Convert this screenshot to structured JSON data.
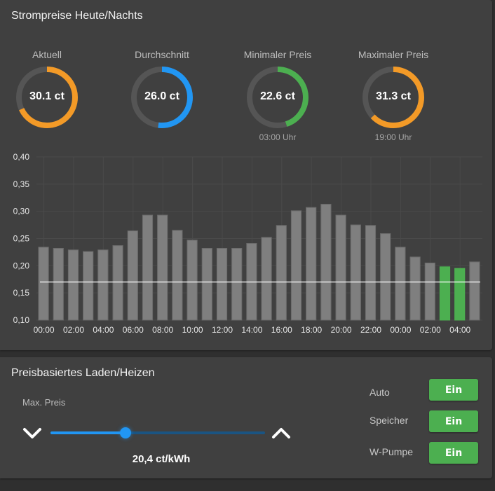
{
  "prices_card": {
    "title": "Strompreise Heute/Nachts",
    "gauges": [
      {
        "label": "Aktuell",
        "value": "30.1 ct",
        "fraction": 0.68,
        "color": "#f39a27",
        "sub": ""
      },
      {
        "label": "Durchschnitt",
        "value": "26.0 ct",
        "fraction": 0.52,
        "color": "#2196f3",
        "sub": ""
      },
      {
        "label": "Minimaler Preis",
        "value": "22.6 ct",
        "fraction": 0.45,
        "color": "#4caf50",
        "sub": "03:00 Uhr"
      },
      {
        "label": "Maximaler Preis",
        "value": "31.3 ct",
        "fraction": 0.63,
        "color": "#f39a27",
        "sub": "19:00 Uhr"
      }
    ]
  },
  "chart_data": {
    "type": "bar",
    "title": "",
    "xlabel": "",
    "ylabel": "",
    "ylim": [
      0.1,
      0.4
    ],
    "yticks": [
      "0,10",
      "0,15",
      "0,20",
      "0,25",
      "0,30",
      "0,35",
      "0,40"
    ],
    "ytick_values": [
      0.1,
      0.15,
      0.2,
      0.25,
      0.3,
      0.35,
      0.4
    ],
    "grid": true,
    "categories": [
      "00:00",
      "01:00",
      "02:00",
      "03:00",
      "04:00",
      "05:00",
      "06:00",
      "07:00",
      "08:00",
      "09:00",
      "10:00",
      "11:00",
      "12:00",
      "13:00",
      "14:00",
      "15:00",
      "16:00",
      "17:00",
      "18:00",
      "19:00",
      "20:00",
      "21:00",
      "22:00",
      "23:00",
      "00:00",
      "01:00",
      "02:00",
      "03:00",
      "04:00",
      "05:00"
    ],
    "xtick_labels": [
      "00:00",
      "02:00",
      "04:00",
      "06:00",
      "08:00",
      "10:00",
      "12:00",
      "14:00",
      "16:00",
      "18:00",
      "20:00",
      "22:00",
      "00:00",
      "02:00",
      "04:00"
    ],
    "values": [
      0.234,
      0.232,
      0.229,
      0.226,
      0.229,
      0.237,
      0.264,
      0.293,
      0.293,
      0.265,
      0.247,
      0.232,
      0.232,
      0.232,
      0.241,
      0.252,
      0.274,
      0.301,
      0.307,
      0.313,
      0.293,
      0.275,
      0.274,
      0.259,
      0.234,
      0.216,
      0.205,
      0.198,
      0.195,
      0.207
    ],
    "highlighted": [
      false,
      false,
      false,
      false,
      false,
      false,
      false,
      false,
      false,
      false,
      false,
      false,
      false,
      false,
      false,
      false,
      false,
      false,
      false,
      false,
      false,
      false,
      false,
      false,
      false,
      false,
      false,
      true,
      true,
      false
    ],
    "bar_color": "#7f7f7f",
    "highlight_color": "#4caf50",
    "threshold_line": 0.17,
    "threshold_color": "#ffffff"
  },
  "charging_card": {
    "title": "Preisbasiertes Laden/Heizen",
    "slider": {
      "label": "Max. Preis",
      "value_text": "20,4 ct/kWh",
      "fraction": 0.35,
      "decrease_icon": "chevron-down",
      "increase_icon": "chevron-up"
    },
    "switches": [
      {
        "label": "Auto",
        "button": "Ein"
      },
      {
        "label": "Speicher",
        "button": "Ein"
      },
      {
        "label": "W-Pumpe",
        "button": "Ein"
      }
    ],
    "accent": "#4caf50"
  }
}
